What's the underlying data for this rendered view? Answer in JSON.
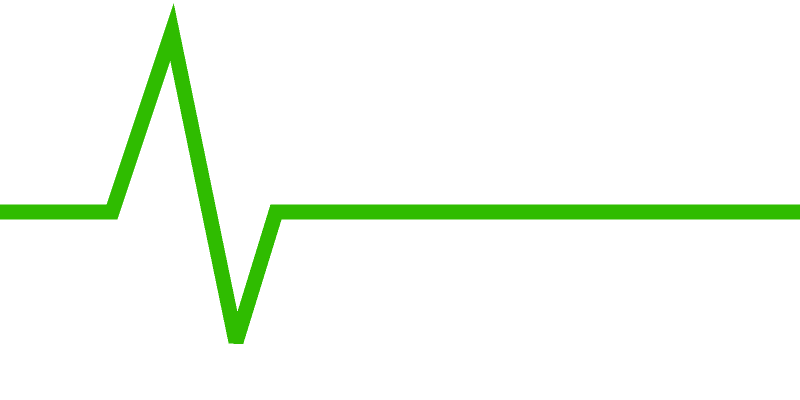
{
  "graphic": {
    "icon": "heartbeat-pulse-line-icon",
    "colors": {
      "background": "#ffffff",
      "line": "#2fbc00"
    }
  }
}
